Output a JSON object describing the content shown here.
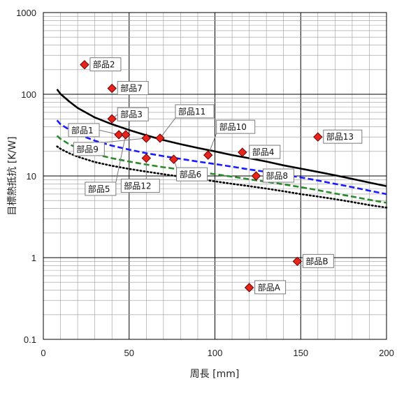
{
  "chart_data": {
    "type": "scatter",
    "title": "",
    "xlabel": "周長 [mm]",
    "ylabel": "目標熱抵抗 [K/W]",
    "xlim": [
      0,
      200
    ],
    "ylim": [
      0.1,
      1000
    ],
    "yscale": "log",
    "xticks": [
      "0",
      "50",
      "100",
      "150",
      "200"
    ],
    "yticks": [
      "0.1",
      "1",
      "10",
      "100",
      "1000"
    ],
    "grid": true,
    "points": [
      {
        "label": "部品1",
        "x": 44,
        "y": 32
      },
      {
        "label": "部品2",
        "x": 24,
        "y": 230
      },
      {
        "label": "部品3",
        "x": 40,
        "y": 50
      },
      {
        "label": "部品4",
        "x": 116,
        "y": 19.5
      },
      {
        "label": "部品5",
        "x": 48,
        "y": 32
      },
      {
        "label": "部品6",
        "x": 76,
        "y": 16
      },
      {
        "label": "部品7",
        "x": 40,
        "y": 118
      },
      {
        "label": "部品8",
        "x": 124,
        "y": 10
      },
      {
        "label": "部品9",
        "x": 60,
        "y": 29
      },
      {
        "label": "部品10",
        "x": 96,
        "y": 18
      },
      {
        "label": "部品11",
        "x": 68,
        "y": 29
      },
      {
        "label": "部品12",
        "x": 60,
        "y": 16.5
      },
      {
        "label": "部品13",
        "x": 160,
        "y": 30
      },
      {
        "label": "部品A",
        "x": 120,
        "y": 0.43
      },
      {
        "label": "部品B",
        "x": 148,
        "y": 0.9
      }
    ],
    "curves": [
      {
        "style": "solid",
        "color": "#000000",
        "x": [
          8,
          10,
          15,
          20,
          30,
          40,
          50,
          60,
          70,
          80,
          90,
          100,
          110,
          120,
          130,
          140,
          150,
          160,
          170,
          180,
          190,
          200
        ],
        "y": [
          115,
          101,
          82,
          68,
          52,
          43,
          36.5,
          31.5,
          27.5,
          24.5,
          22,
          20,
          18,
          16.5,
          15,
          13.5,
          12.3,
          11.2,
          10.2,
          9.2,
          8.3,
          7.5
        ]
      },
      {
        "style": "dashed",
        "color": "#1a1aff",
        "x": [
          8,
          10,
          15,
          20,
          30,
          40,
          50,
          60,
          70,
          80,
          90,
          100,
          110,
          120,
          130,
          140,
          150,
          160,
          170,
          180,
          190,
          200
        ],
        "y": [
          48,
          43,
          37,
          32.5,
          27,
          23.5,
          21,
          19,
          17.5,
          16.2,
          15,
          14,
          13,
          12,
          11.2,
          10.4,
          9.6,
          8.8,
          8,
          7.3,
          6.6,
          6
        ]
      },
      {
        "style": "dashed",
        "color": "#2a8a2a",
        "x": [
          8,
          10,
          15,
          20,
          30,
          40,
          50,
          60,
          70,
          80,
          90,
          100,
          110,
          120,
          130,
          140,
          150,
          160,
          170,
          180,
          190,
          200
        ],
        "y": [
          31,
          28.5,
          24.5,
          22,
          18.5,
          16.5,
          15,
          13.8,
          12.8,
          12,
          11.2,
          10.5,
          9.8,
          9.1,
          8.5,
          7.9,
          7.3,
          6.7,
          6.1,
          5.6,
          5.1,
          4.7
        ]
      },
      {
        "style": "dotted",
        "color": "#000000",
        "x": [
          8,
          10,
          15,
          20,
          30,
          40,
          50,
          60,
          70,
          80,
          90,
          100,
          110,
          120,
          130,
          140,
          150,
          160,
          170,
          180,
          190,
          200
        ],
        "y": [
          23,
          21.5,
          19,
          17.2,
          14.8,
          13.3,
          12.2,
          11.3,
          10.5,
          9.8,
          9.2,
          8.6,
          8,
          7.5,
          7,
          6.5,
          6,
          5.6,
          5.2,
          4.8,
          4.4,
          4.1
        ]
      }
    ]
  },
  "colors": {
    "marker_fill": "#e8251c",
    "marker_stroke": "#6a0000",
    "grid_major": "#000000",
    "grid_minor": "#9a9a9a"
  }
}
